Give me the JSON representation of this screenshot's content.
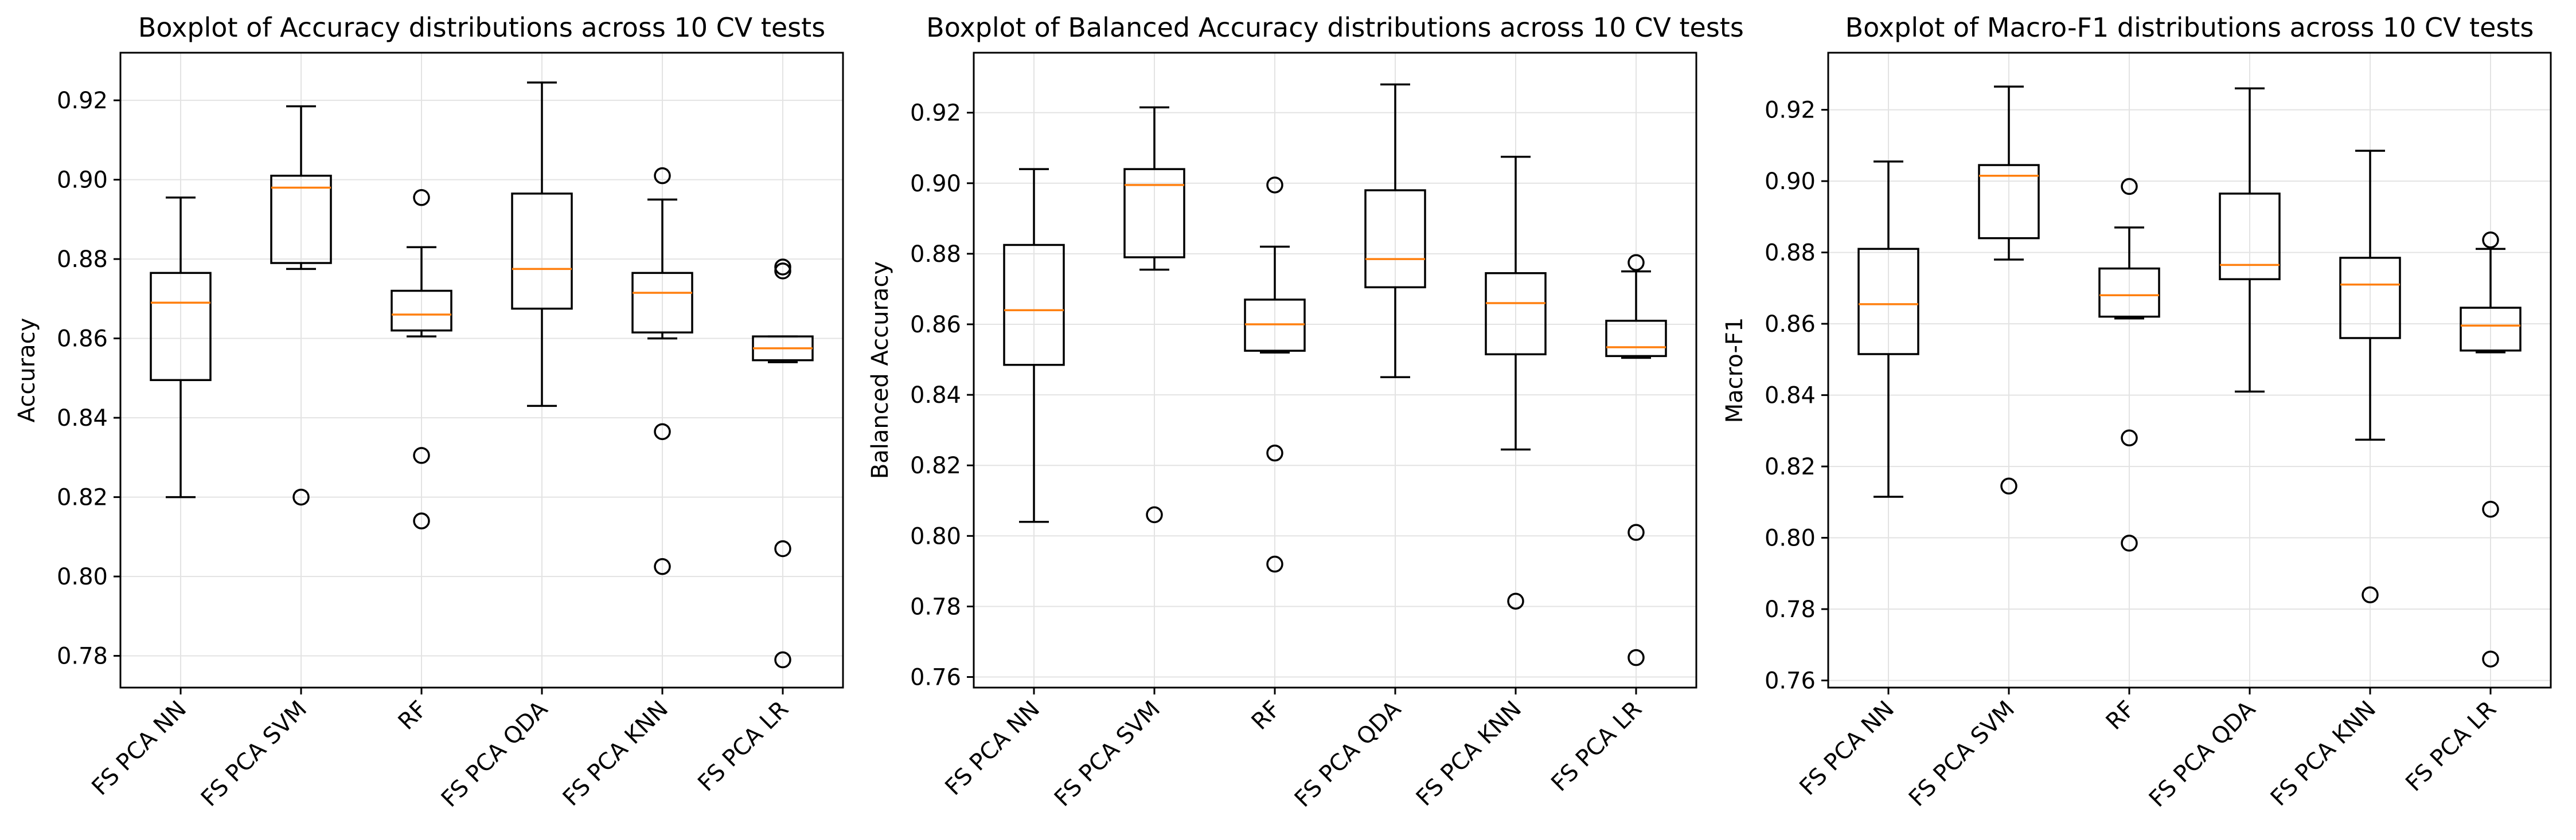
{
  "chart_data": [
    {
      "type": "box",
      "title": "Boxplot of Accuracy distributions across 10 CV tests",
      "xlabel": "",
      "ylabel": "Accuracy",
      "ylim": [
        0.772,
        0.932
      ],
      "yticks": [
        0.78,
        0.8,
        0.82,
        0.84,
        0.86,
        0.88,
        0.9,
        0.92
      ],
      "grid": true,
      "categories": [
        "FS PCA NN",
        "FS PCA SVM",
        "RF",
        "FS PCA QDA",
        "FS PCA KNN",
        "FS PCA LR"
      ],
      "boxes": [
        {
          "q1": 0.8495,
          "median": 0.869,
          "q3": 0.8765,
          "whisker_low": 0.82,
          "whisker_high": 0.8955,
          "outliers": []
        },
        {
          "q1": 0.879,
          "median": 0.898,
          "q3": 0.901,
          "whisker_low": 0.8775,
          "whisker_high": 0.9185,
          "outliers": [
            0.82
          ]
        },
        {
          "q1": 0.862,
          "median": 0.866,
          "q3": 0.872,
          "whisker_low": 0.8605,
          "whisker_high": 0.883,
          "outliers": [
            0.8955,
            0.8305,
            0.814
          ]
        },
        {
          "q1": 0.8675,
          "median": 0.8775,
          "q3": 0.8965,
          "whisker_low": 0.843,
          "whisker_high": 0.9245,
          "outliers": []
        },
        {
          "q1": 0.8615,
          "median": 0.8715,
          "q3": 0.8765,
          "whisker_low": 0.86,
          "whisker_high": 0.895,
          "outliers": [
            0.901,
            0.8365,
            0.8025
          ]
        },
        {
          "q1": 0.8545,
          "median": 0.8575,
          "q3": 0.8605,
          "whisker_low": 0.854,
          "whisker_high": 0.8605,
          "outliers": [
            0.878,
            0.877,
            0.807,
            0.779
          ]
        }
      ]
    },
    {
      "type": "box",
      "title": "Boxplot of Balanced Accuracy distributions across 10 CV tests",
      "xlabel": "",
      "ylabel": "Balanced Accuracy",
      "ylim": [
        0.757,
        0.937
      ],
      "yticks": [
        0.76,
        0.78,
        0.8,
        0.82,
        0.84,
        0.86,
        0.88,
        0.9,
        0.92
      ],
      "grid": true,
      "categories": [
        "FS PCA NN",
        "FS PCA SVM",
        "RF",
        "FS PCA QDA",
        "FS PCA KNN",
        "FS PCA LR"
      ],
      "boxes": [
        {
          "q1": 0.8485,
          "median": 0.864,
          "q3": 0.8825,
          "whisker_low": 0.804,
          "whisker_high": 0.904,
          "outliers": []
        },
        {
          "q1": 0.879,
          "median": 0.8995,
          "q3": 0.904,
          "whisker_low": 0.8755,
          "whisker_high": 0.9215,
          "outliers": [
            0.806
          ]
        },
        {
          "q1": 0.8525,
          "median": 0.86,
          "q3": 0.867,
          "whisker_low": 0.852,
          "whisker_high": 0.882,
          "outliers": [
            0.8995,
            0.8235,
            0.792
          ]
        },
        {
          "q1": 0.8705,
          "median": 0.8785,
          "q3": 0.898,
          "whisker_low": 0.845,
          "whisker_high": 0.928,
          "outliers": []
        },
        {
          "q1": 0.8515,
          "median": 0.866,
          "q3": 0.8745,
          "whisker_low": 0.8245,
          "whisker_high": 0.9075,
          "outliers": [
            0.7815
          ]
        },
        {
          "q1": 0.851,
          "median": 0.8535,
          "q3": 0.861,
          "whisker_low": 0.8505,
          "whisker_high": 0.875,
          "outliers": [
            0.8775,
            0.801,
            0.7655
          ]
        }
      ]
    },
    {
      "type": "box",
      "title": "Boxplot of Macro-F1 distributions across 10 CV tests",
      "xlabel": "",
      "ylabel": "Macro-F1",
      "ylim": [
        0.758,
        0.936
      ],
      "yticks": [
        0.76,
        0.78,
        0.8,
        0.82,
        0.84,
        0.86,
        0.88,
        0.9,
        0.92
      ],
      "grid": true,
      "categories": [
        "FS PCA NN",
        "FS PCA SVM",
        "RF",
        "FS PCA QDA",
        "FS PCA KNN",
        "FS PCA LR"
      ],
      "boxes": [
        {
          "q1": 0.8515,
          "median": 0.8655,
          "q3": 0.881,
          "whisker_low": 0.8115,
          "whisker_high": 0.9055,
          "outliers": []
        },
        {
          "q1": 0.884,
          "median": 0.9015,
          "q3": 0.9045,
          "whisker_low": 0.878,
          "whisker_high": 0.9265,
          "outliers": [
            0.8145
          ]
        },
        {
          "q1": 0.862,
          "median": 0.868,
          "q3": 0.8755,
          "whisker_low": 0.8615,
          "whisker_high": 0.887,
          "outliers": [
            0.8985,
            0.828,
            0.7985
          ]
        },
        {
          "q1": 0.8725,
          "median": 0.8765,
          "q3": 0.8965,
          "whisker_low": 0.841,
          "whisker_high": 0.926,
          "outliers": []
        },
        {
          "q1": 0.856,
          "median": 0.871,
          "q3": 0.8785,
          "whisker_low": 0.8275,
          "whisker_high": 0.9085,
          "outliers": [
            0.784
          ]
        },
        {
          "q1": 0.8525,
          "median": 0.8595,
          "q3": 0.8645,
          "whisker_low": 0.852,
          "whisker_high": 0.881,
          "outliers": [
            0.8835,
            0.808,
            0.766
          ]
        }
      ]
    }
  ],
  "colors": {
    "median": "#ff7f0e",
    "box": "#000000",
    "grid": "#e3e3e3",
    "background": "#ffffff"
  }
}
